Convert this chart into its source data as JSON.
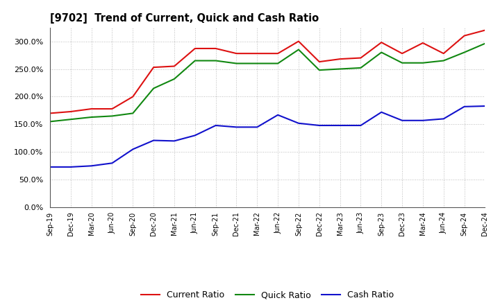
{
  "title": "[9702]  Trend of Current, Quick and Cash Ratio",
  "x_labels": [
    "Sep-19",
    "Dec-19",
    "Mar-20",
    "Jun-20",
    "Sep-20",
    "Dec-20",
    "Mar-21",
    "Jun-21",
    "Sep-21",
    "Dec-21",
    "Mar-22",
    "Jun-22",
    "Sep-22",
    "Dec-22",
    "Mar-23",
    "Jun-23",
    "Sep-23",
    "Dec-23",
    "Mar-24",
    "Jun-24",
    "Sep-24",
    "Dec-24"
  ],
  "current_ratio": [
    170,
    173,
    178,
    178,
    200,
    253,
    255,
    287,
    287,
    278,
    278,
    278,
    300,
    263,
    268,
    270,
    298,
    278,
    297,
    278,
    310,
    320
  ],
  "quick_ratio": [
    155,
    159,
    163,
    165,
    170,
    215,
    232,
    265,
    265,
    260,
    260,
    260,
    285,
    248,
    250,
    252,
    280,
    261,
    261,
    265,
    280,
    296
  ],
  "cash_ratio": [
    73,
    73,
    75,
    80,
    105,
    121,
    120,
    130,
    148,
    145,
    145,
    167,
    152,
    148,
    148,
    148,
    172,
    157,
    157,
    160,
    182,
    183
  ],
  "current_color": "#dd1111",
  "quick_color": "#118811",
  "cash_color": "#1111cc",
  "ylim": [
    0,
    325
  ],
  "yticks": [
    0,
    50,
    100,
    150,
    200,
    250,
    300
  ],
  "background_color": "#ffffff",
  "grid_color": "#bbbbbb",
  "legend_labels": [
    "Current Ratio",
    "Quick Ratio",
    "Cash Ratio"
  ]
}
